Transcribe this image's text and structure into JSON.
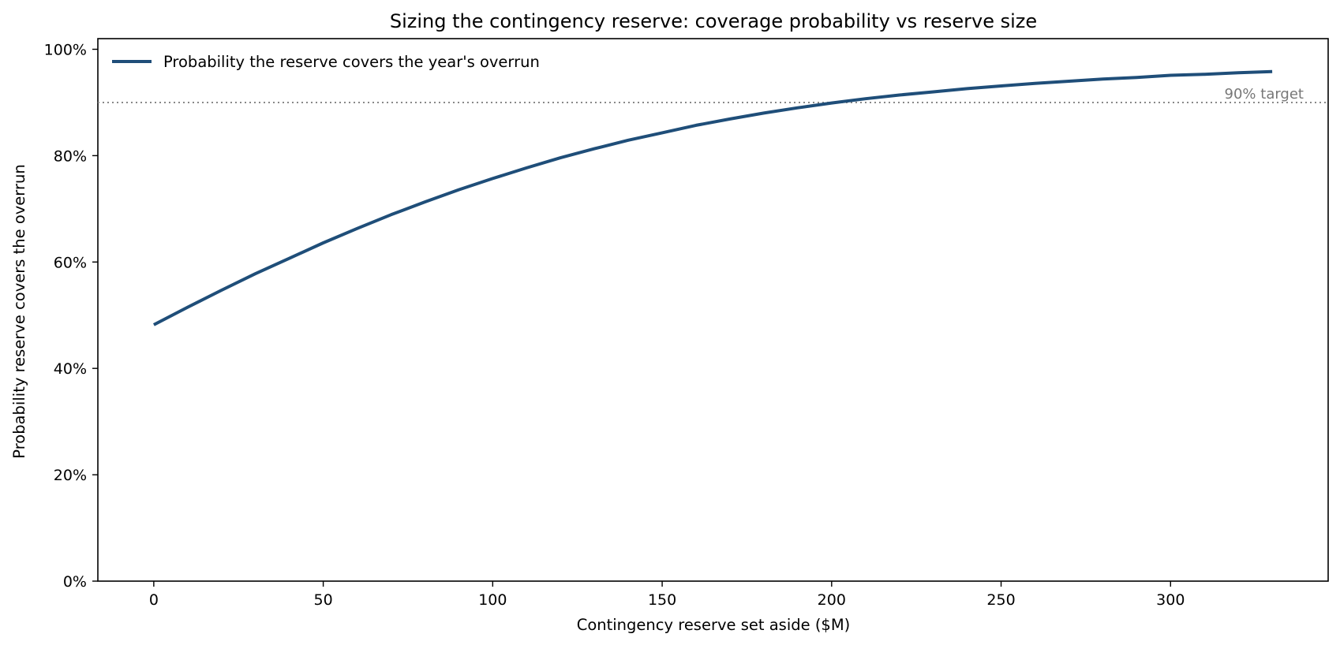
{
  "chart_data": {
    "type": "line",
    "title": "Sizing the contingency reserve: coverage probability vs reserve size",
    "xlabel": "Contingency reserve set aside  ($M)",
    "ylabel": "Probability reserve covers the overrun",
    "xlim": [
      -16.5,
      346.5
    ],
    "ylim": [
      0,
      1.02
    ],
    "x_ticks": [
      0,
      50,
      100,
      150,
      200,
      250,
      300
    ],
    "x_tick_labels": [
      "0",
      "50",
      "100",
      "150",
      "200",
      "250",
      "300"
    ],
    "y_ticks": [
      0,
      0.2,
      0.4,
      0.6,
      0.8,
      1.0
    ],
    "y_tick_labels": [
      "0%",
      "20%",
      "40%",
      "60%",
      "80%",
      "100%"
    ],
    "grid": false,
    "legend_position": "top-left",
    "series": [
      {
        "name": "Probability the reserve covers the year's overrun",
        "color": "#1f4e79",
        "x": [
          0,
          10,
          20,
          30,
          40,
          50,
          60,
          70,
          80,
          90,
          100,
          110,
          120,
          130,
          140,
          150,
          160,
          170,
          180,
          190,
          200,
          210,
          220,
          230,
          240,
          250,
          260,
          270,
          280,
          290,
          300,
          310,
          320,
          330
        ],
        "y": [
          0.482,
          0.515,
          0.547,
          0.578,
          0.607,
          0.636,
          0.663,
          0.689,
          0.713,
          0.736,
          0.757,
          0.777,
          0.796,
          0.813,
          0.829,
          0.843,
          0.857,
          0.869,
          0.88,
          0.89,
          0.899,
          0.907,
          0.914,
          0.92,
          0.926,
          0.931,
          0.936,
          0.94,
          0.944,
          0.947,
          0.951,
          0.953,
          0.956,
          0.958
        ]
      }
    ],
    "reference_line": {
      "y": 0.9,
      "label": "90% target",
      "color": "#888888",
      "label_color": "#777777"
    }
  }
}
